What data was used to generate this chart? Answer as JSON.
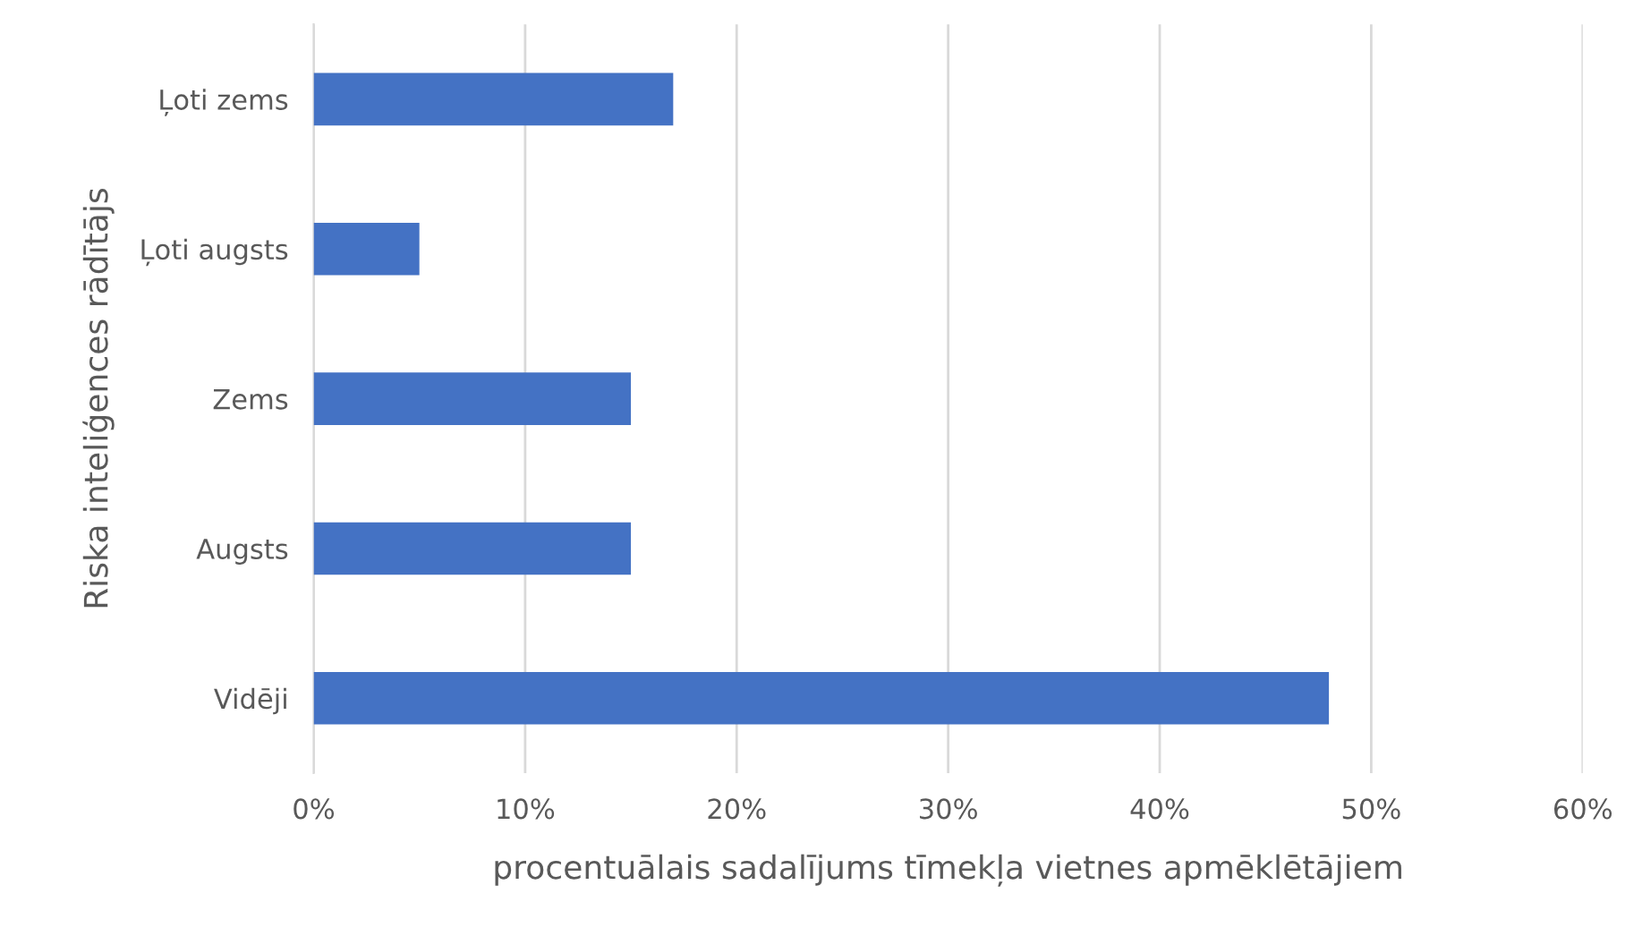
{
  "chart_data": {
    "type": "bar",
    "orientation": "horizontal",
    "xlabel": "procentuālais sadalījums tīmekļa vietnes apmēklētājiem",
    "ylabel": "Riska inteliģences rādītājs",
    "categories": [
      "Ļoti zems",
      "Ļoti augsts",
      "Zems",
      "Augsts",
      "Vidēji"
    ],
    "values": [
      17,
      5,
      15,
      15,
      48
    ],
    "color": "#4472c4",
    "xlim": [
      0,
      60
    ],
    "xticks": [
      {
        "value": 0,
        "label": "0%"
      },
      {
        "value": 10,
        "label": "10%"
      },
      {
        "value": 20,
        "label": "20%"
      },
      {
        "value": 30,
        "label": "30%"
      },
      {
        "value": 40,
        "label": "40%"
      },
      {
        "value": 50,
        "label": "50%"
      },
      {
        "value": 60,
        "label": "60%"
      }
    ],
    "grid": "x"
  }
}
